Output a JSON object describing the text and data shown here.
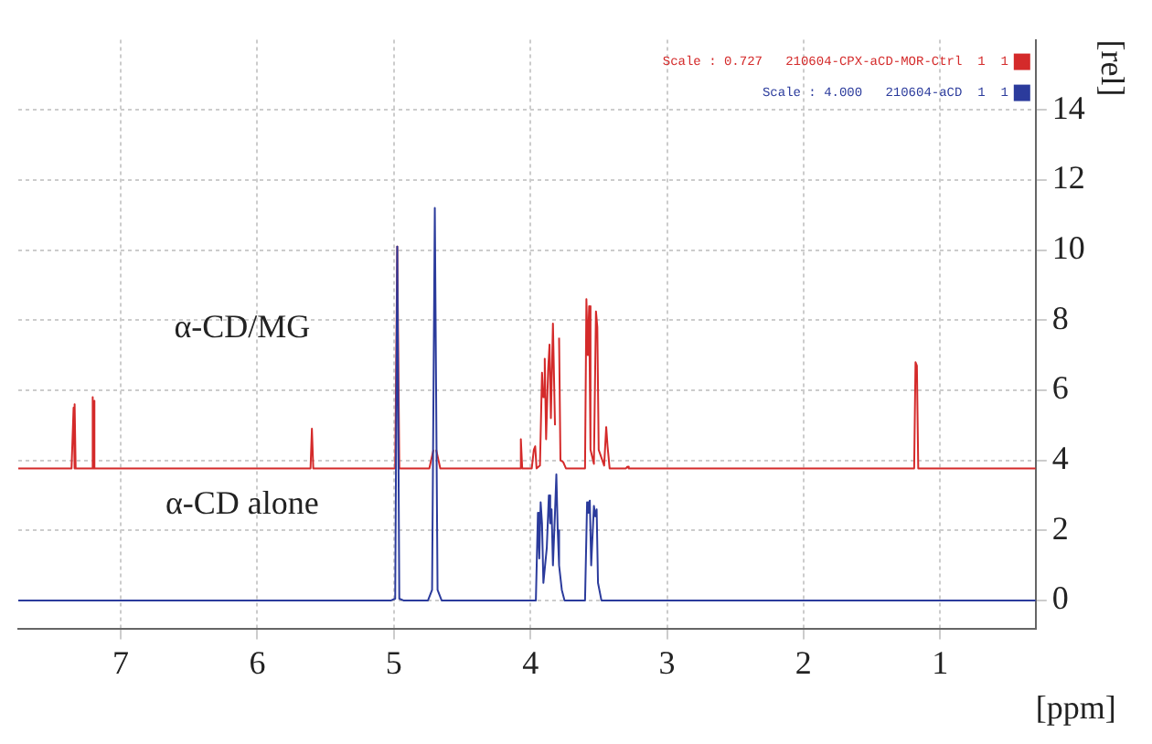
{
  "chart_data": {
    "type": "line",
    "xlabel": "[ppm]",
    "ylabel": "[rel]",
    "xlim": [
      7.75,
      0.3
    ],
    "xticks": [
      7,
      6,
      5,
      4,
      3,
      2,
      1
    ],
    "ylim": [
      -0.8,
      16
    ],
    "yticks": [
      0,
      2,
      4,
      6,
      8,
      10,
      12,
      14
    ],
    "grid": true,
    "legend": "top right",
    "marker": "none",
    "line_style": "solid",
    "annotations": [
      "α-CD/MG",
      "α-CD alone"
    ],
    "series": [
      {
        "name": "Scale : 0.727   210604-CPX-aCD-MOR-Ctrl  1  1",
        "color": "#d42a2a",
        "x": [
          7.75,
          7.36,
          7.345,
          7.34,
          7.335,
          7.33,
          7.21,
          7.205,
          7.2,
          7.195,
          7.19,
          5.61,
          5.6,
          5.59,
          4.99,
          4.975,
          4.96,
          4.74,
          4.71,
          4.7,
          4.69,
          4.66,
          4.08,
          4.07,
          4.06,
          3.99,
          3.975,
          3.965,
          3.955,
          3.93,
          3.915,
          3.905,
          3.895,
          3.885,
          3.87,
          3.86,
          3.85,
          3.835,
          3.82,
          3.8,
          3.79,
          3.78,
          3.76,
          3.74,
          3.6,
          3.59,
          3.58,
          3.57,
          3.56,
          3.535,
          3.52,
          3.51,
          3.5,
          3.46,
          3.445,
          3.435,
          3.42,
          3.3,
          3.29,
          3.28,
          1.19,
          1.18,
          1.17,
          1.16,
          0.3
        ],
        "values": [
          3.77,
          3.77,
          5.5,
          3.77,
          5.6,
          3.77,
          3.77,
          5.8,
          3.77,
          5.7,
          3.77,
          3.77,
          4.9,
          3.77,
          3.77,
          10.1,
          3.77,
          3.77,
          4.3,
          null,
          4.3,
          3.77,
          3.77,
          4.6,
          3.77,
          3.77,
          4.3,
          4.4,
          3.77,
          3.85,
          6.5,
          5.8,
          6.9,
          4.6,
          6.6,
          7.3,
          5.2,
          7.9,
          5.0,
          null,
          7.5,
          4.0,
          3.95,
          3.77,
          3.77,
          8.6,
          7.0,
          8.4,
          4.3,
          3.9,
          8.25,
          7.8,
          4.3,
          3.85,
          4.95,
          4.4,
          3.77,
          3.77,
          3.82,
          3.77,
          3.77,
          6.8,
          6.7,
          3.77,
          3.77
        ]
      },
      {
        "name": "Scale : 4.000   210604-aCD  1  1",
        "color": "#2b3b9c",
        "x": [
          7.75,
          5.02,
          4.99,
          4.975,
          4.96,
          4.93,
          4.75,
          4.72,
          4.7,
          4.68,
          4.65,
          3.96,
          3.945,
          3.935,
          3.925,
          3.915,
          3.905,
          3.88,
          3.865,
          3.855,
          3.845,
          3.835,
          3.82,
          3.81,
          3.8,
          3.79,
          3.77,
          3.75,
          3.6,
          3.585,
          3.575,
          3.565,
          3.555,
          3.535,
          3.525,
          3.515,
          3.505,
          3.48,
          0.3
        ],
        "values": [
          0,
          0,
          0.05,
          10.1,
          0.05,
          0,
          0,
          0.3,
          11.2,
          0.3,
          0,
          0,
          2.5,
          1.2,
          2.8,
          2.2,
          0.5,
          1.5,
          3.0,
          2.2,
          2.6,
          1.0,
          2.5,
          3.6,
          2.0,
          1.0,
          0.3,
          0,
          0,
          2.8,
          2.5,
          2.85,
          1.0,
          2.7,
          2.4,
          2.6,
          0.5,
          0,
          0
        ]
      }
    ]
  }
}
